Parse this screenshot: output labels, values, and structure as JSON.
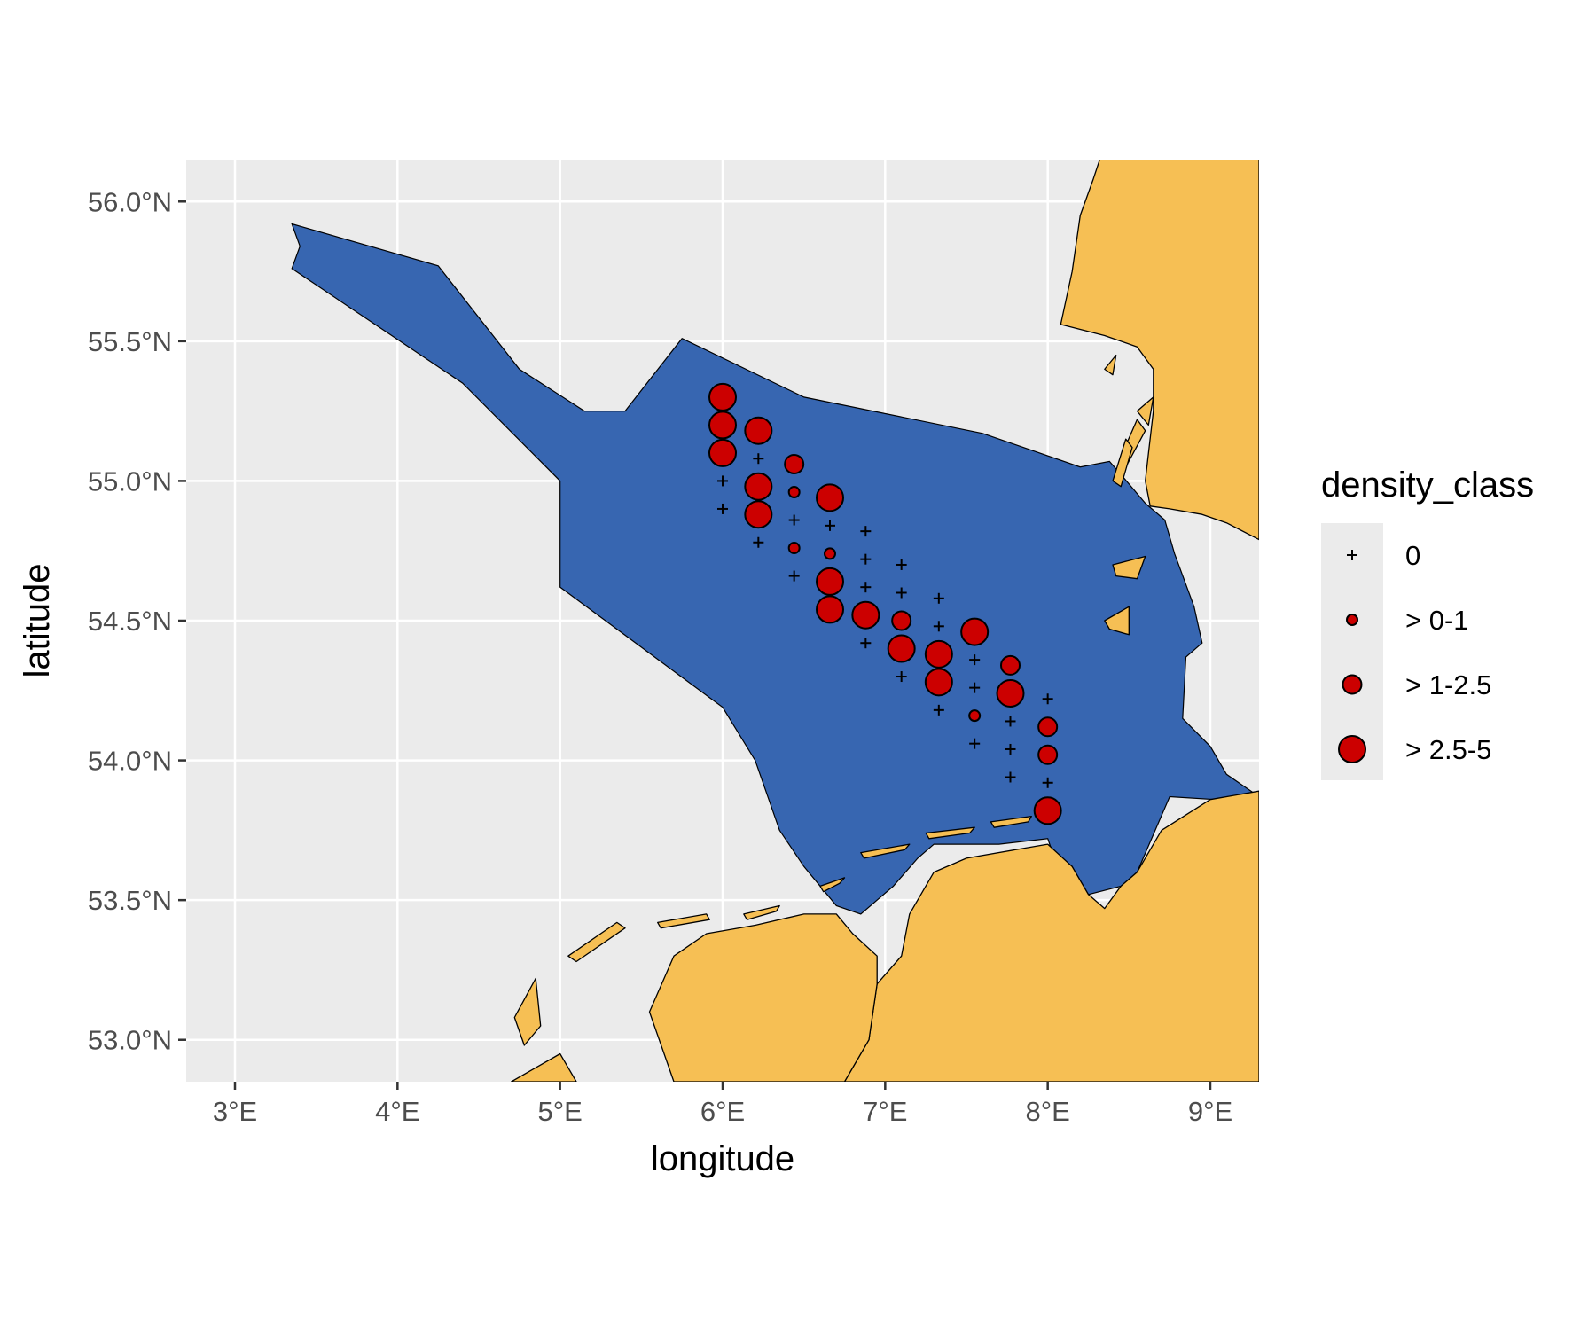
{
  "chart_data": {
    "type": "scatter",
    "xlabel": "longitude",
    "ylabel": "latitude",
    "xlim": [
      2.7,
      9.3
    ],
    "ylim": [
      52.85,
      56.15
    ],
    "x_ticks": [
      {
        "value": 3,
        "label": "3°E"
      },
      {
        "value": 4,
        "label": "4°E"
      },
      {
        "value": 5,
        "label": "5°E"
      },
      {
        "value": 6,
        "label": "6°E"
      },
      {
        "value": 7,
        "label": "7°E"
      },
      {
        "value": 8,
        "label": "8°E"
      },
      {
        "value": 9,
        "label": "9°E"
      }
    ],
    "y_ticks": [
      {
        "value": 53.0,
        "label": "53.0°N"
      },
      {
        "value": 53.5,
        "label": "53.5°N"
      },
      {
        "value": 54.0,
        "label": "54.0°N"
      },
      {
        "value": 54.5,
        "label": "54.5°N"
      },
      {
        "value": 55.0,
        "label": "55.0°N"
      },
      {
        "value": 55.5,
        "label": "55.5°N"
      },
      {
        "value": 56.0,
        "label": "56.0°N"
      }
    ],
    "grid": true,
    "colors": {
      "panel_background": "#ebebeb",
      "grid": "#ffffff",
      "land": "#f6bf54",
      "study_area": "#3766b1",
      "point_fill": "#cc0000",
      "outline": "#000000"
    },
    "study_area_polygon": [
      [
        3.35,
        55.92
      ],
      [
        4.25,
        55.77
      ],
      [
        4.75,
        55.4
      ],
      [
        5.15,
        55.25
      ],
      [
        5.4,
        55.25
      ],
      [
        5.75,
        55.51
      ],
      [
        6.5,
        55.3
      ],
      [
        7.6,
        55.17
      ],
      [
        8.2,
        55.05
      ],
      [
        8.38,
        55.07
      ],
      [
        8.47,
        55.01
      ],
      [
        8.6,
        54.92
      ],
      [
        8.72,
        54.86
      ],
      [
        8.78,
        54.74
      ],
      [
        8.9,
        54.55
      ],
      [
        8.95,
        54.42
      ],
      [
        8.85,
        54.37
      ],
      [
        8.83,
        54.15
      ],
      [
        9.0,
        54.05
      ],
      [
        9.1,
        53.95
      ],
      [
        9.3,
        53.87
      ],
      [
        9.3,
        53.85
      ],
      [
        8.75,
        53.87
      ],
      [
        8.55,
        53.6
      ],
      [
        8.45,
        53.55
      ],
      [
        8.25,
        53.52
      ],
      [
        8.15,
        53.62
      ],
      [
        8.1,
        53.55
      ],
      [
        8.0,
        53.72
      ],
      [
        7.7,
        53.7
      ],
      [
        7.3,
        53.7
      ],
      [
        7.2,
        53.65
      ],
      [
        7.05,
        53.55
      ],
      [
        6.85,
        53.45
      ],
      [
        6.7,
        53.48
      ],
      [
        6.5,
        53.62
      ],
      [
        6.35,
        53.75
      ],
      [
        6.2,
        54.0
      ],
      [
        6.0,
        54.19
      ],
      [
        5.0,
        54.62
      ],
      [
        5.0,
        55.0
      ],
      [
        4.4,
        55.35
      ],
      [
        3.35,
        55.76
      ],
      [
        3.4,
        55.84
      ]
    ],
    "coast_right": [
      [
        8.32,
        56.15
      ],
      [
        9.3,
        56.15
      ],
      [
        9.3,
        54.79
      ],
      [
        9.1,
        54.85
      ],
      [
        8.95,
        54.88
      ],
      [
        8.75,
        54.9
      ],
      [
        8.63,
        54.91
      ],
      [
        8.6,
        55.0
      ],
      [
        8.62,
        55.1
      ],
      [
        8.65,
        55.25
      ],
      [
        8.65,
        55.4
      ],
      [
        8.55,
        55.48
      ],
      [
        8.35,
        55.52
      ],
      [
        8.08,
        55.56
      ],
      [
        8.15,
        55.75
      ],
      [
        8.2,
        55.95
      ],
      [
        8.28,
        56.08
      ]
    ],
    "coast_lower_right": [
      [
        9.3,
        53.89
      ],
      [
        9.3,
        52.85
      ],
      [
        6.75,
        52.85
      ],
      [
        6.9,
        53.0
      ],
      [
        6.95,
        53.2
      ],
      [
        7.1,
        53.3
      ],
      [
        7.15,
        53.45
      ],
      [
        7.3,
        53.6
      ],
      [
        7.5,
        53.65
      ],
      [
        7.8,
        53.68
      ],
      [
        8.0,
        53.7
      ],
      [
        8.15,
        53.62
      ],
      [
        8.25,
        53.52
      ],
      [
        8.35,
        53.47
      ],
      [
        8.45,
        53.55
      ],
      [
        8.55,
        53.6
      ],
      [
        8.7,
        53.75
      ],
      [
        9.0,
        53.86
      ]
    ],
    "coast_lower_left": [
      [
        5.7,
        52.85
      ],
      [
        6.75,
        52.85
      ],
      [
        6.9,
        53.0
      ],
      [
        6.95,
        53.2
      ],
      [
        6.95,
        53.3
      ],
      [
        6.8,
        53.38
      ],
      [
        6.7,
        53.45
      ],
      [
        6.5,
        53.45
      ],
      [
        6.2,
        53.41
      ],
      [
        5.9,
        53.38
      ],
      [
        5.7,
        53.3
      ],
      [
        5.55,
        53.1
      ]
    ],
    "coast_far_left": [
      [
        4.7,
        52.85
      ],
      [
        5.1,
        52.85
      ],
      [
        5.0,
        52.95
      ],
      [
        4.85,
        52.9
      ]
    ],
    "islands": [
      [
        [
          4.72,
          53.08
        ],
        [
          4.85,
          53.22
        ],
        [
          4.88,
          53.05
        ],
        [
          4.78,
          52.98
        ]
      ],
      [
        [
          5.05,
          53.3
        ],
        [
          5.35,
          53.42
        ],
        [
          5.4,
          53.4
        ],
        [
          5.1,
          53.28
        ]
      ],
      [
        [
          5.6,
          53.42
        ],
        [
          5.9,
          53.45
        ],
        [
          5.92,
          53.43
        ],
        [
          5.62,
          53.4
        ]
      ],
      [
        [
          6.13,
          53.45
        ],
        [
          6.35,
          53.48
        ],
        [
          6.33,
          53.46
        ],
        [
          6.15,
          53.43
        ]
      ],
      [
        [
          6.6,
          53.55
        ],
        [
          6.75,
          53.58
        ],
        [
          6.72,
          53.56
        ],
        [
          6.62,
          53.53
        ]
      ],
      [
        [
          6.85,
          53.67
        ],
        [
          7.15,
          53.7
        ],
        [
          7.12,
          53.68
        ],
        [
          6.87,
          53.65
        ]
      ],
      [
        [
          7.25,
          53.74
        ],
        [
          7.55,
          53.76
        ],
        [
          7.52,
          53.74
        ],
        [
          7.27,
          53.72
        ]
      ],
      [
        [
          7.65,
          53.78
        ],
        [
          7.9,
          53.8
        ],
        [
          7.88,
          53.78
        ],
        [
          7.67,
          53.76
        ]
      ],
      [
        [
          8.4,
          54.7
        ],
        [
          8.6,
          54.73
        ],
        [
          8.55,
          54.65
        ],
        [
          8.42,
          54.66
        ]
      ],
      [
        [
          8.35,
          54.5
        ],
        [
          8.5,
          54.55
        ],
        [
          8.5,
          54.45
        ],
        [
          8.38,
          54.47
        ]
      ],
      [
        [
          8.48,
          55.05
        ],
        [
          8.6,
          55.18
        ],
        [
          8.55,
          55.22
        ],
        [
          8.46,
          55.1
        ]
      ],
      [
        [
          8.4,
          55.0
        ],
        [
          8.48,
          55.15
        ],
        [
          8.52,
          55.12
        ],
        [
          8.45,
          54.98
        ]
      ],
      [
        [
          8.35,
          55.4
        ],
        [
          8.42,
          55.45
        ],
        [
          8.4,
          55.38
        ]
      ],
      [
        [
          8.55,
          55.25
        ],
        [
          8.65,
          55.3
        ],
        [
          8.62,
          55.2
        ]
      ]
    ],
    "density_classes": [
      "0",
      "> 0-1",
      "> 1-2.5",
      "> 2.5-5"
    ],
    "legend": {
      "title": "density_class",
      "position": "right",
      "entries": [
        "0",
        "> 0-1",
        "> 1-2.5",
        "> 2.5-5"
      ]
    },
    "points": [
      {
        "lon": 6.0,
        "lat": 55.3,
        "density_class": "> 2.5-5"
      },
      {
        "lon": 6.0,
        "lat": 55.2,
        "density_class": "> 2.5-5"
      },
      {
        "lon": 6.0,
        "lat": 55.1,
        "density_class": "> 2.5-5"
      },
      {
        "lon": 6.0,
        "lat": 55.0,
        "density_class": "0"
      },
      {
        "lon": 6.0,
        "lat": 54.9,
        "density_class": "0"
      },
      {
        "lon": 6.22,
        "lat": 55.18,
        "density_class": "> 2.5-5"
      },
      {
        "lon": 6.22,
        "lat": 55.08,
        "density_class": "0"
      },
      {
        "lon": 6.22,
        "lat": 54.98,
        "density_class": "> 2.5-5"
      },
      {
        "lon": 6.22,
        "lat": 54.88,
        "density_class": "> 2.5-5"
      },
      {
        "lon": 6.22,
        "lat": 54.78,
        "density_class": "0"
      },
      {
        "lon": 6.44,
        "lat": 55.06,
        "density_class": "> 1-2.5"
      },
      {
        "lon": 6.44,
        "lat": 54.96,
        "density_class": "> 0-1"
      },
      {
        "lon": 6.44,
        "lat": 54.86,
        "density_class": "0"
      },
      {
        "lon": 6.44,
        "lat": 54.76,
        "density_class": "> 0-1"
      },
      {
        "lon": 6.44,
        "lat": 54.66,
        "density_class": "0"
      },
      {
        "lon": 6.66,
        "lat": 54.94,
        "density_class": "> 2.5-5"
      },
      {
        "lon": 6.66,
        "lat": 54.84,
        "density_class": "0"
      },
      {
        "lon": 6.66,
        "lat": 54.74,
        "density_class": "> 0-1"
      },
      {
        "lon": 6.66,
        "lat": 54.64,
        "density_class": "> 2.5-5"
      },
      {
        "lon": 6.66,
        "lat": 54.54,
        "density_class": "> 2.5-5"
      },
      {
        "lon": 6.88,
        "lat": 54.82,
        "density_class": "0"
      },
      {
        "lon": 6.88,
        "lat": 54.72,
        "density_class": "0"
      },
      {
        "lon": 6.88,
        "lat": 54.62,
        "density_class": "0"
      },
      {
        "lon": 6.88,
        "lat": 54.52,
        "density_class": "> 2.5-5"
      },
      {
        "lon": 6.88,
        "lat": 54.42,
        "density_class": "0"
      },
      {
        "lon": 7.1,
        "lat": 54.7,
        "density_class": "0"
      },
      {
        "lon": 7.1,
        "lat": 54.6,
        "density_class": "0"
      },
      {
        "lon": 7.1,
        "lat": 54.5,
        "density_class": "> 1-2.5"
      },
      {
        "lon": 7.1,
        "lat": 54.4,
        "density_class": "> 2.5-5"
      },
      {
        "lon": 7.1,
        "lat": 54.3,
        "density_class": "0"
      },
      {
        "lon": 7.33,
        "lat": 54.58,
        "density_class": "0"
      },
      {
        "lon": 7.33,
        "lat": 54.48,
        "density_class": "0"
      },
      {
        "lon": 7.33,
        "lat": 54.38,
        "density_class": "> 2.5-5"
      },
      {
        "lon": 7.33,
        "lat": 54.28,
        "density_class": "> 2.5-5"
      },
      {
        "lon": 7.33,
        "lat": 54.18,
        "density_class": "0"
      },
      {
        "lon": 7.55,
        "lat": 54.46,
        "density_class": "> 2.5-5"
      },
      {
        "lon": 7.55,
        "lat": 54.36,
        "density_class": "0"
      },
      {
        "lon": 7.55,
        "lat": 54.26,
        "density_class": "0"
      },
      {
        "lon": 7.55,
        "lat": 54.16,
        "density_class": "> 0-1"
      },
      {
        "lon": 7.55,
        "lat": 54.06,
        "density_class": "0"
      },
      {
        "lon": 7.77,
        "lat": 54.34,
        "density_class": "> 1-2.5"
      },
      {
        "lon": 7.77,
        "lat": 54.24,
        "density_class": "> 2.5-5"
      },
      {
        "lon": 7.77,
        "lat": 54.14,
        "density_class": "0"
      },
      {
        "lon": 7.77,
        "lat": 54.04,
        "density_class": "0"
      },
      {
        "lon": 7.77,
        "lat": 53.94,
        "density_class": "0"
      },
      {
        "lon": 8.0,
        "lat": 54.22,
        "density_class": "0"
      },
      {
        "lon": 8.0,
        "lat": 54.12,
        "density_class": "> 1-2.5"
      },
      {
        "lon": 8.0,
        "lat": 54.02,
        "density_class": "> 1-2.5"
      },
      {
        "lon": 8.0,
        "lat": 53.92,
        "density_class": "0"
      },
      {
        "lon": 8.0,
        "lat": 53.82,
        "density_class": "> 2.5-5"
      }
    ]
  }
}
